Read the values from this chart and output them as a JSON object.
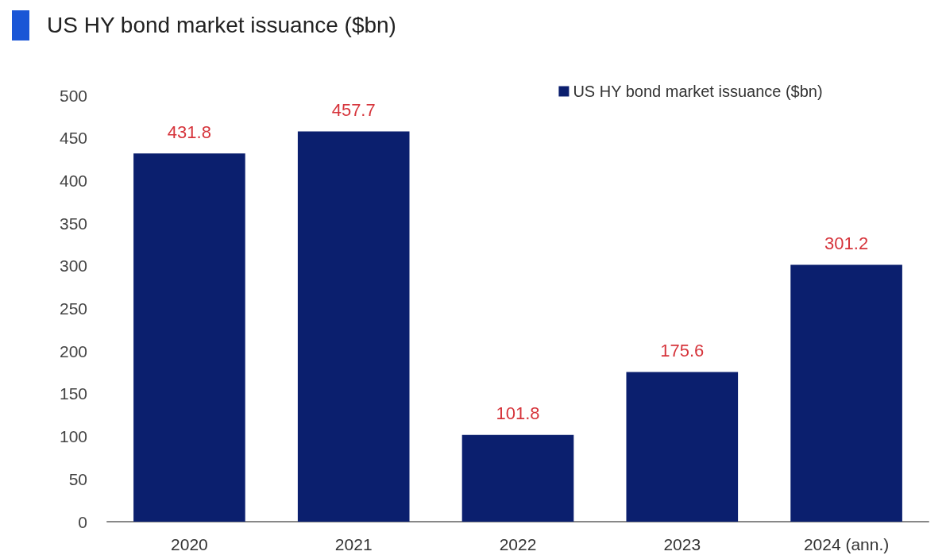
{
  "chart_data": {
    "type": "bar",
    "title": "US HY bond market issuance ($bn)",
    "categories": [
      "2020",
      "2021",
      "2022",
      "2023",
      "2024 (ann.)"
    ],
    "series": [
      {
        "name": "US HY bond market issuance ($bn)",
        "color": "#0b1f6e",
        "values": [
          431.8,
          457.7,
          101.8,
          175.6,
          301.2
        ]
      }
    ],
    "ylim": [
      0,
      500
    ],
    "yticks": [
      0,
      50,
      100,
      150,
      200,
      250,
      300,
      350,
      400,
      450,
      500
    ],
    "data_labels": true,
    "grid": false,
    "legend": "top right"
  }
}
